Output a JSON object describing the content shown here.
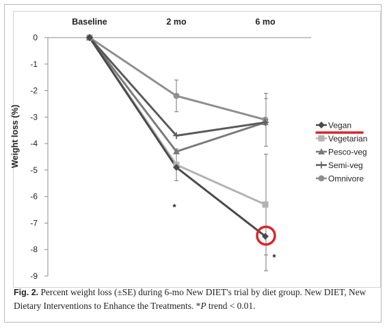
{
  "chart_data": {
    "type": "line",
    "categories": [
      "Baseline",
      "2 mo",
      "6 mo"
    ],
    "ylabel": "Weight loss (%)",
    "ylim": [
      -9,
      0
    ],
    "yticks": [
      0,
      -1,
      -2,
      -3,
      -4,
      -5,
      -6,
      -7,
      -8,
      -9
    ],
    "grid": false,
    "legend_position": "right",
    "series": [
      {
        "name": "Vegan",
        "values": [
          0,
          -4.9,
          -7.5
        ],
        "err": [
          0,
          0,
          1.3
        ],
        "marker": "diamond",
        "color": "#4a4a4a"
      },
      {
        "name": "Vegetarian",
        "values": [
          0,
          -4.8,
          -6.3
        ],
        "err": [
          0,
          0.6,
          1.9
        ],
        "marker": "square",
        "color": "#b3b3b3"
      },
      {
        "name": "Pesco-veg",
        "values": [
          0,
          -4.3,
          -3.2
        ],
        "err": [
          0,
          0,
          0
        ],
        "marker": "triangle",
        "color": "#7a7a7a"
      },
      {
        "name": "Semi-veg",
        "values": [
          0,
          -3.7,
          -3.2
        ],
        "err": [
          0,
          0,
          0.9
        ],
        "marker": "cross",
        "color": "#5a5a5a"
      },
      {
        "name": "Omnivore",
        "values": [
          0,
          -2.2,
          -3.1
        ],
        "err": [
          0,
          0.6,
          1.0
        ],
        "marker": "circle",
        "color": "#8f8f8f"
      }
    ],
    "annotations": [
      {
        "text": "*",
        "x": "2 mo",
        "y": -6.3
      },
      {
        "text": "*",
        "x": "6 mo",
        "y": -8.2
      }
    ],
    "highlight": {
      "series": "Vegan",
      "x": "6 mo",
      "color": "#d9262b"
    }
  },
  "caption": {
    "fig_label": "Fig. 2.",
    "text": " Percent weight loss (±SE) during 6-mo New DIET's trial by diet group. New DIET, New Dietary Interventions to Enhance the Treatments. ",
    "star_p": "*",
    "p_italic": "P",
    "trend_text": " trend < 0.01."
  }
}
